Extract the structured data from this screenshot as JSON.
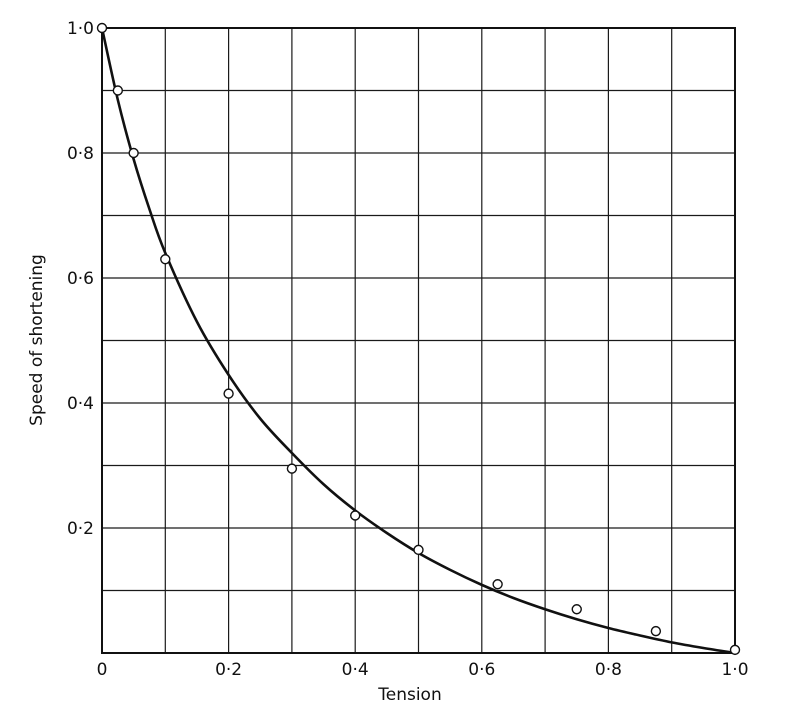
{
  "chart_data": {
    "type": "scatter",
    "title": "",
    "xlabel": "Tension",
    "ylabel": "Speed of shortening",
    "xlim": [
      0,
      1.0
    ],
    "ylim": [
      0,
      1.0
    ],
    "grid": true,
    "x_ticks": [
      {
        "value": 0,
        "label": "0"
      },
      {
        "value": 0.2,
        "label": "0·2"
      },
      {
        "value": 0.4,
        "label": "0·4"
      },
      {
        "value": 0.6,
        "label": "0·6"
      },
      {
        "value": 0.8,
        "label": "0·8"
      },
      {
        "value": 1.0,
        "label": "1·0"
      }
    ],
    "y_ticks": [
      {
        "value": 0.2,
        "label": "0·2"
      },
      {
        "value": 0.4,
        "label": "0·4"
      },
      {
        "value": 0.6,
        "label": "0·6"
      },
      {
        "value": 0.8,
        "label": "0·8"
      },
      {
        "value": 1.0,
        "label": "1·0"
      }
    ],
    "grid_step": 0.1,
    "series": [
      {
        "kind": "points",
        "x": [
          0.0,
          0.025,
          0.05,
          0.1,
          0.2,
          0.3,
          0.4,
          0.5,
          0.625,
          0.75,
          0.875,
          1.0
        ],
        "y": [
          1.0,
          0.9,
          0.8,
          0.63,
          0.415,
          0.295,
          0.22,
          0.165,
          0.11,
          0.07,
          0.035,
          0.005
        ]
      },
      {
        "kind": "fitted-curve",
        "x": [
          0.0,
          0.025,
          0.05,
          0.075,
          0.1,
          0.15,
          0.2,
          0.25,
          0.3,
          0.35,
          0.4,
          0.45,
          0.5,
          0.55,
          0.6,
          0.65,
          0.7,
          0.75,
          0.8,
          0.85,
          0.9,
          0.95,
          1.0
        ],
        "y": [
          1.0,
          0.885,
          0.79,
          0.71,
          0.64,
          0.53,
          0.445,
          0.375,
          0.32,
          0.27,
          0.228,
          0.192,
          0.16,
          0.133,
          0.109,
          0.088,
          0.07,
          0.054,
          0.04,
          0.028,
          0.017,
          0.008,
          0.0
        ]
      }
    ]
  }
}
